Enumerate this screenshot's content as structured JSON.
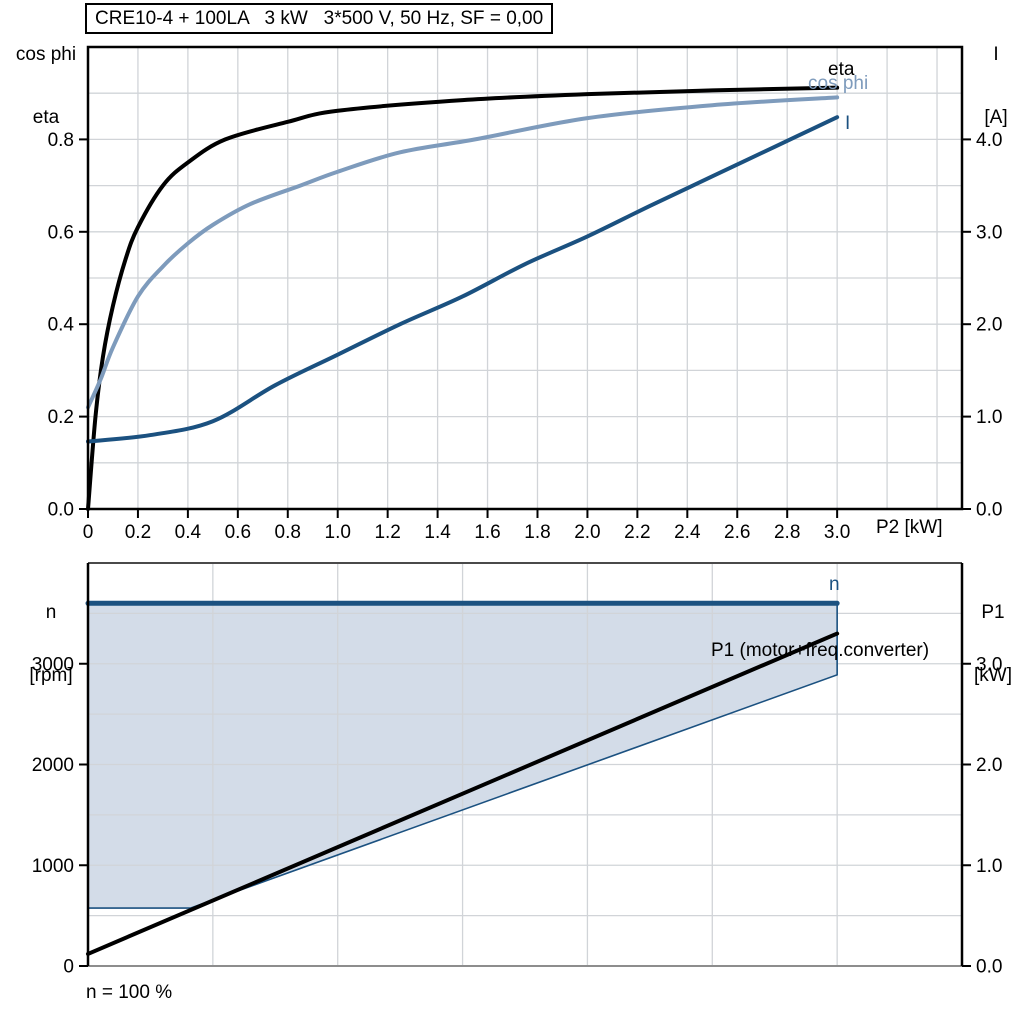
{
  "chart_data": [
    {
      "type": "line",
      "title": "CRE10-4 + 100LA   3 kW   3*500 V, 50 Hz, SF = 0,00",
      "xlabel": "P2 [kW]",
      "ylabel_left": [
        "cos phi",
        "eta"
      ],
      "ylabel_right": [
        "I",
        "[A]"
      ],
      "x_range": [
        0,
        3.5
      ],
      "y_left_range": [
        0,
        1.0
      ],
      "y_right_range": [
        0,
        5.0
      ],
      "x_tick_values": [
        0,
        0.2,
        0.4,
        0.6,
        0.8,
        1.0,
        1.2,
        1.4,
        1.6,
        1.8,
        2.0,
        2.2,
        2.4,
        2.6,
        2.8,
        3.0
      ],
      "x_tick_labels": [
        "0",
        "0.2",
        "0.4",
        "0.6",
        "0.8",
        "1.0",
        "1.2",
        "1.4",
        "1.6",
        "1.8",
        "2.0",
        "2.2",
        "2.4",
        "2.6",
        "2.8",
        "3.0"
      ],
      "left_tick_values": [
        0,
        0.2,
        0.4,
        0.6,
        0.8
      ],
      "left_tick_labels": [
        "0.0",
        "0.2",
        "0.4",
        "0.6",
        "0.8"
      ],
      "right_tick_values": [
        0,
        1,
        2,
        3,
        4
      ],
      "right_tick_labels": [
        "0.0",
        "1.0",
        "2.0",
        "3.0",
        "4.0"
      ],
      "grid": {
        "x_step": 0.2,
        "y_step": 0.1,
        "color": "#d1d4d8"
      },
      "legend_position": "end-of-curve",
      "series": [
        {
          "name": "eta",
          "label": "eta",
          "color": "#000000",
          "axis": "left",
          "width": 4,
          "smooth": true,
          "x": [
            0,
            0.03,
            0.06,
            0.1,
            0.15,
            0.2,
            0.3,
            0.4,
            0.55,
            0.8,
            1.0,
            1.5,
            2.0,
            2.5,
            3.0
          ],
          "y": [
            0,
            0.2,
            0.33,
            0.44,
            0.54,
            0.61,
            0.7,
            0.75,
            0.8,
            0.838,
            0.862,
            0.885,
            0.898,
            0.906,
            0.912
          ]
        },
        {
          "name": "cos-phi",
          "label": "cos phi",
          "color": "#7e9bbc",
          "axis": "left",
          "width": 4,
          "smooth": true,
          "x": [
            0,
            0.05,
            0.1,
            0.2,
            0.3,
            0.4,
            0.5,
            0.65,
            0.85,
            1.0,
            1.25,
            1.55,
            2.0,
            2.5,
            3.0
          ],
          "y": [
            0.22,
            0.28,
            0.35,
            0.46,
            0.525,
            0.575,
            0.615,
            0.66,
            0.7,
            0.73,
            0.772,
            0.8,
            0.846,
            0.874,
            0.891
          ]
        },
        {
          "name": "current",
          "label": "I",
          "color": "#1b5180",
          "axis": "right",
          "width": 4,
          "smooth": true,
          "x": [
            0,
            0.25,
            0.5,
            0.75,
            1.0,
            1.25,
            1.5,
            1.75,
            2.0,
            2.25,
            2.5,
            2.75,
            3.0
          ],
          "y": [
            0.73,
            0.8,
            0.95,
            1.34,
            1.67,
            2.0,
            2.3,
            2.65,
            2.95,
            3.28,
            3.6,
            3.92,
            4.24
          ]
        }
      ]
    },
    {
      "type": "line",
      "caption": "n = 100 %",
      "ylabel_left": [
        "n",
        "[rpm]"
      ],
      "ylabel_right": [
        "P1",
        "[kW]"
      ],
      "x_range": [
        0,
        3.5
      ],
      "y_left_range": [
        0,
        4000
      ],
      "y_right_range": [
        0,
        4.0
      ],
      "left_tick_values": [
        0,
        1000,
        2000,
        3000
      ],
      "left_tick_labels": [
        "0",
        "1000",
        "2000",
        "3000"
      ],
      "right_tick_values": [
        0,
        1,
        2,
        3
      ],
      "right_tick_labels": [
        "0.0",
        "1.0",
        "2.0",
        "3.0"
      ],
      "grid": {
        "x_step": 0.5,
        "y_step": 500,
        "color": "#d1d4d8"
      },
      "band": {
        "name": "speed-operating-range",
        "fill": "#d3dce8",
        "border_color": "#1b5180",
        "upper": {
          "axis": "left",
          "x": [
            0,
            3.0
          ],
          "y": [
            3600,
            3600
          ]
        },
        "lower": {
          "axis": "left",
          "x": [
            0,
            0.41,
            3.0
          ],
          "y": [
            575,
            575,
            2890
          ]
        }
      },
      "series": [
        {
          "name": "speed",
          "label": "n",
          "color": "#1b5180",
          "axis": "left",
          "width": 5,
          "smooth": false,
          "x": [
            0,
            3.0
          ],
          "y": [
            3600,
            3600
          ]
        },
        {
          "name": "p1-motor-freq-converter",
          "label": "P1 (motor+freq.converter)",
          "color": "#000000",
          "axis": "right",
          "width": 4,
          "smooth": false,
          "x": [
            0,
            3.0
          ],
          "y": [
            0.12,
            3.3
          ]
        }
      ]
    }
  ]
}
